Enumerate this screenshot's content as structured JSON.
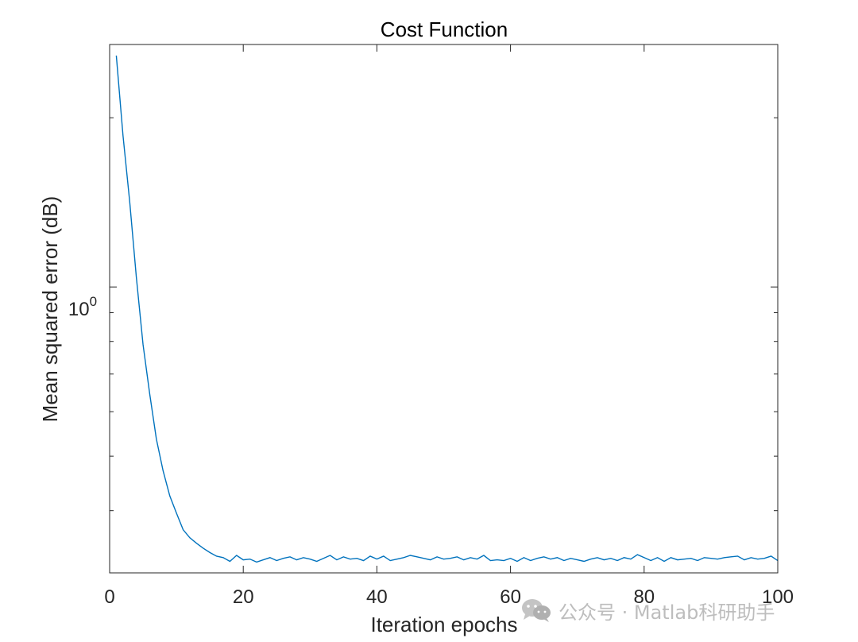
{
  "chart_data": {
    "type": "line",
    "title": "Cost Function",
    "xlabel": "Iteration epochs",
    "ylabel": "Mean squared error (dB)",
    "xlim": [
      0,
      100
    ],
    "ylim": [
      0.31,
      2.7
    ],
    "yscale": "log",
    "grid": false,
    "box": true,
    "xticks": [
      0,
      20,
      40,
      60,
      80,
      100
    ],
    "xtick_labels": [
      "0",
      "20",
      "40",
      "60",
      "80",
      "100"
    ],
    "yticks": [
      1
    ],
    "ytick_label_base": "10",
    "ytick_label_exp": "0",
    "series_color": "#0072BD",
    "series": [
      {
        "x": [
          1,
          2,
          3,
          4,
          5,
          6,
          7,
          8,
          9,
          10,
          11,
          12,
          13,
          14,
          15,
          16,
          17,
          18,
          19,
          20,
          21,
          22,
          23,
          24,
          25,
          26,
          27,
          28,
          29,
          30,
          31,
          32,
          33,
          34,
          35,
          36,
          37,
          38,
          39,
          40,
          41,
          42,
          43,
          44,
          45,
          46,
          47,
          48,
          49,
          50,
          51,
          52,
          53,
          54,
          55,
          56,
          57,
          58,
          59,
          60,
          61,
          62,
          63,
          64,
          65,
          66,
          67,
          68,
          69,
          70,
          71,
          72,
          73,
          74,
          75,
          76,
          77,
          78,
          79,
          80,
          81,
          82,
          83,
          84,
          85,
          86,
          87,
          88,
          89,
          90,
          91,
          92,
          93,
          94,
          95,
          96,
          97,
          98,
          99,
          100
        ],
        "y": [
          2.58,
          1.86,
          1.42,
          1.04,
          0.79,
          0.645,
          0.536,
          0.471,
          0.425,
          0.396,
          0.37,
          0.358,
          0.35,
          0.343,
          0.337,
          0.332,
          0.33,
          0.325,
          0.333,
          0.327,
          0.328,
          0.324,
          0.327,
          0.33,
          0.326,
          0.329,
          0.331,
          0.327,
          0.33,
          0.328,
          0.325,
          0.329,
          0.333,
          0.327,
          0.331,
          0.328,
          0.329,
          0.326,
          0.332,
          0.328,
          0.332,
          0.326,
          0.328,
          0.33,
          0.333,
          0.331,
          0.329,
          0.327,
          0.331,
          0.328,
          0.329,
          0.331,
          0.327,
          0.33,
          0.328,
          0.333,
          0.326,
          0.327,
          0.326,
          0.329,
          0.325,
          0.33,
          0.326,
          0.329,
          0.331,
          0.328,
          0.33,
          0.326,
          0.329,
          0.327,
          0.325,
          0.328,
          0.33,
          0.327,
          0.329,
          0.326,
          0.33,
          0.328,
          0.334,
          0.33,
          0.326,
          0.33,
          0.325,
          0.33,
          0.327,
          0.328,
          0.329,
          0.326,
          0.33,
          0.329,
          0.328,
          0.33,
          0.331,
          0.332,
          0.327,
          0.33,
          0.328,
          0.329,
          0.332,
          0.326
        ]
      }
    ]
  },
  "watermark": {
    "text": "公众号 · Matlab科研助手",
    "icon": "wechat-icon",
    "color": "#bdbdbd"
  }
}
